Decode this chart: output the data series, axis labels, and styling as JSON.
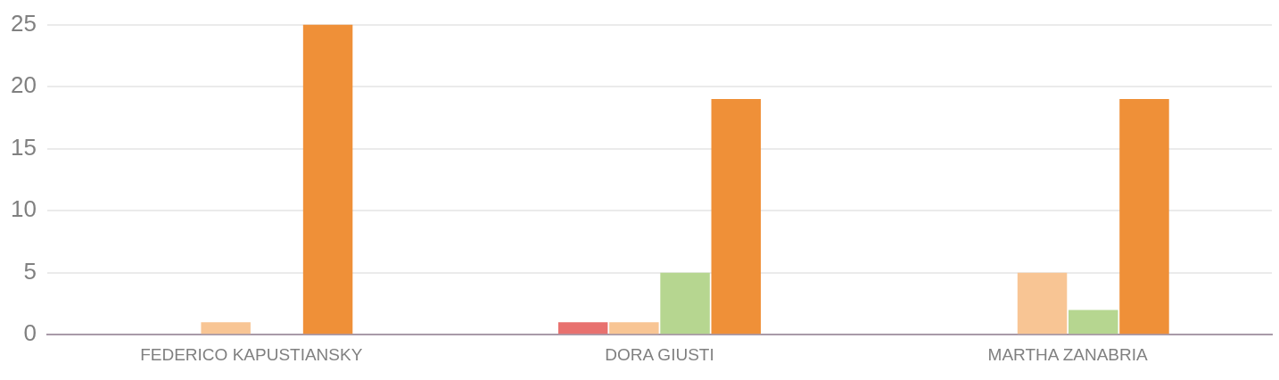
{
  "chart_data": {
    "type": "bar",
    "categories": [
      "FEDERICO KAPUSTIANSKY",
      "DORA GIUSTI",
      "MARTHA ZANABRIA"
    ],
    "series": [
      {
        "color": "#e8716f",
        "values": [
          0,
          1,
          0
        ]
      },
      {
        "color": "#f8c594",
        "values": [
          1,
          1,
          5
        ]
      },
      {
        "color": "#b6d690",
        "values": [
          0,
          5,
          2
        ]
      },
      {
        "color": "#ef9038",
        "values": [
          25,
          19,
          19
        ]
      }
    ],
    "ylim": [
      0,
      25
    ],
    "yticks": [
      0,
      5,
      10,
      15,
      20,
      25
    ],
    "grid": "y",
    "legend": false
  }
}
